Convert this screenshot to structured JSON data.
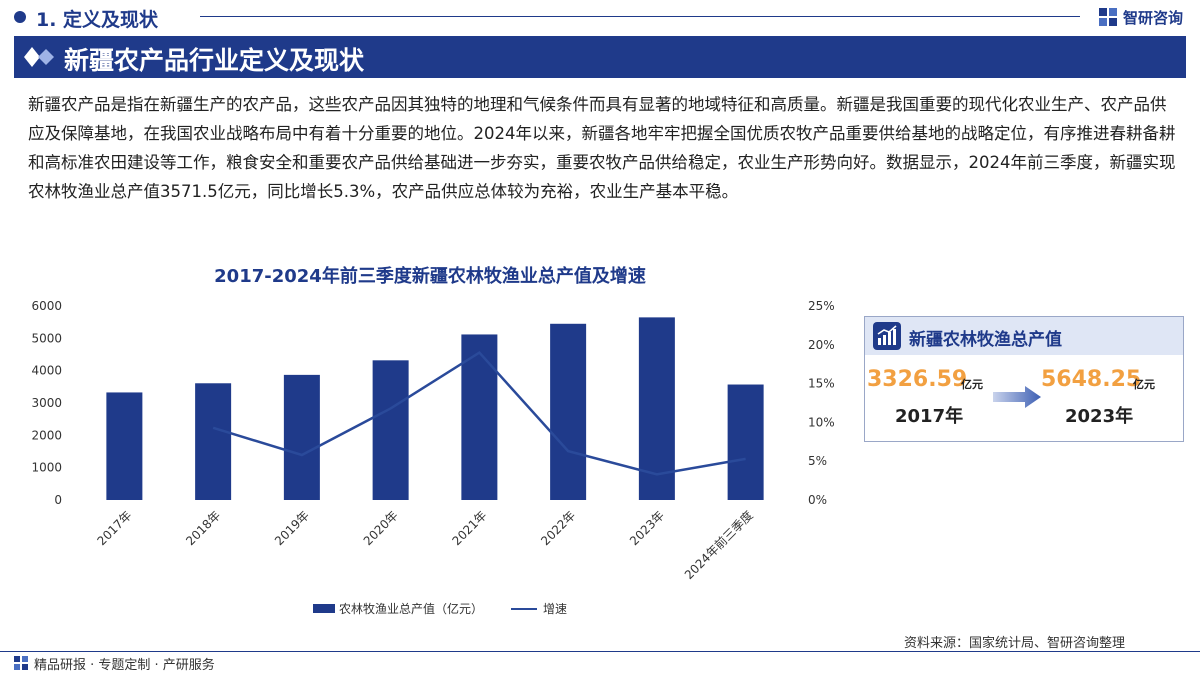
{
  "header": {
    "section": "1. 定义及现状",
    "brand": "智研咨询",
    "title": "新疆农产品行业定义及现状"
  },
  "intro": "新疆农产品是指在新疆生产的农产品，这些农产品因其独特的地理和气候条件而具有显著的地域特征和高质量。新疆是我国重要的现代化农业生产、农产品供应及保障基地，在我国农业战略布局中有着十分重要的地位。2024年以来，新疆各地牢牢把握全国优质农牧产品重要供给基地的战略定位，有序推进春耕备耕和高标准农田建设等工作，粮食安全和重要农产品供给基础进一步夯实，重要农牧产品供给稳定，农业生产形势向好。数据显示，2024年前三季度，新疆实现农林牧渔业总产值3571.5亿元，同比增长5.3%，农产品供应总体较为充裕，农业生产基本平稳。",
  "chart_data": {
    "type": "bar",
    "title": "2017-2024年前三季度新疆农林牧渔业总产值及增速",
    "categories": [
      "2017年",
      "2018年",
      "2019年",
      "2020年",
      "2021年",
      "2022年",
      "2023年",
      "2024年前三季度"
    ],
    "series": [
      {
        "name": "农林牧渔业总产值（亿元）",
        "type": "bar",
        "axis": "left",
        "values": [
          3326.59,
          3610,
          3870,
          4320,
          5120,
          5450,
          5648.25,
          3571.5
        ]
      },
      {
        "name": "增速",
        "type": "line",
        "axis": "right",
        "values": [
          null,
          9.3,
          5.8,
          11.8,
          19.0,
          6.3,
          3.3,
          5.3
        ]
      }
    ],
    "y_left": {
      "min": 0,
      "max": 6000,
      "ticks": [
        0,
        1000,
        2000,
        3000,
        4000,
        5000,
        6000
      ]
    },
    "y_right": {
      "min": 0,
      "max": 25,
      "ticks": [
        "0%",
        "5%",
        "10%",
        "15%",
        "20%",
        "25%"
      ]
    },
    "legend_position": "bottom",
    "colors": {
      "bar": "#1f3a8a",
      "line": "#2a4a9a"
    }
  },
  "card": {
    "title": "新疆农林牧渔总产值",
    "value_a": "3326.59",
    "unit_a": "亿元",
    "year_a": "2017年",
    "value_b": "5648.25",
    "unit_b": "亿元",
    "year_b": "2023年"
  },
  "footer": {
    "left": "精品研报 · 专题定制 · 产研服务",
    "source": "资料来源：国家统计局、智研咨询整理"
  },
  "colors": {
    "primary": "#1f3a8a",
    "accent": "#f2a041"
  }
}
